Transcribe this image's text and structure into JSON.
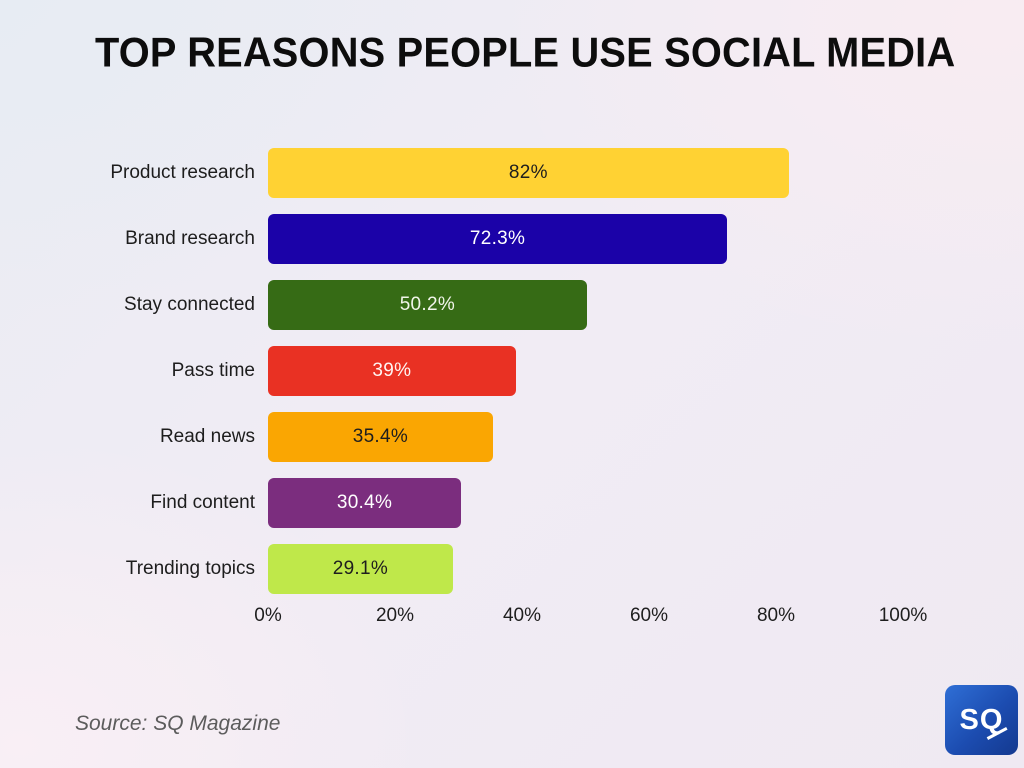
{
  "title": "TOP REASONS PEOPLE USE SOCIAL MEDIA",
  "source_note": "Source: SQ Magazine",
  "logo": {
    "text": "SQ"
  },
  "chart_data": {
    "type": "bar",
    "orientation": "horizontal",
    "title": "TOP REASONS PEOPLE USE SOCIAL MEDIA",
    "categories": [
      "Product research",
      "Brand research",
      "Stay connected",
      "Pass time",
      "Read news",
      "Find content",
      "Trending topics"
    ],
    "values": [
      82,
      72.3,
      50.2,
      39,
      35.4,
      30.4,
      29.1
    ],
    "value_labels": [
      "82%",
      "72.3%",
      "50.2%",
      "39%",
      "35.4%",
      "30.4%",
      "29.1%"
    ],
    "bar_colors": [
      "#ffd233",
      "#1b02a8",
      "#366b15",
      "#e93123",
      "#faa602",
      "#7b2d7e",
      "#bfe84a"
    ],
    "value_text_colors": [
      "#1e1e1e",
      "#ffffff",
      "#f1f5ea",
      "#fff4f2",
      "#1e1e1e",
      "#ffffff",
      "#1e1e1e"
    ],
    "xlabel": "",
    "ylabel": "",
    "xlim": [
      0,
      100
    ],
    "x_tick_values": [
      0,
      20,
      40,
      60,
      80,
      100
    ],
    "x_tick_labels": [
      "0%",
      "20%",
      "40%",
      "60%",
      "80%",
      "100%"
    ],
    "grid": false,
    "legend": false,
    "value_label_position": "center"
  }
}
